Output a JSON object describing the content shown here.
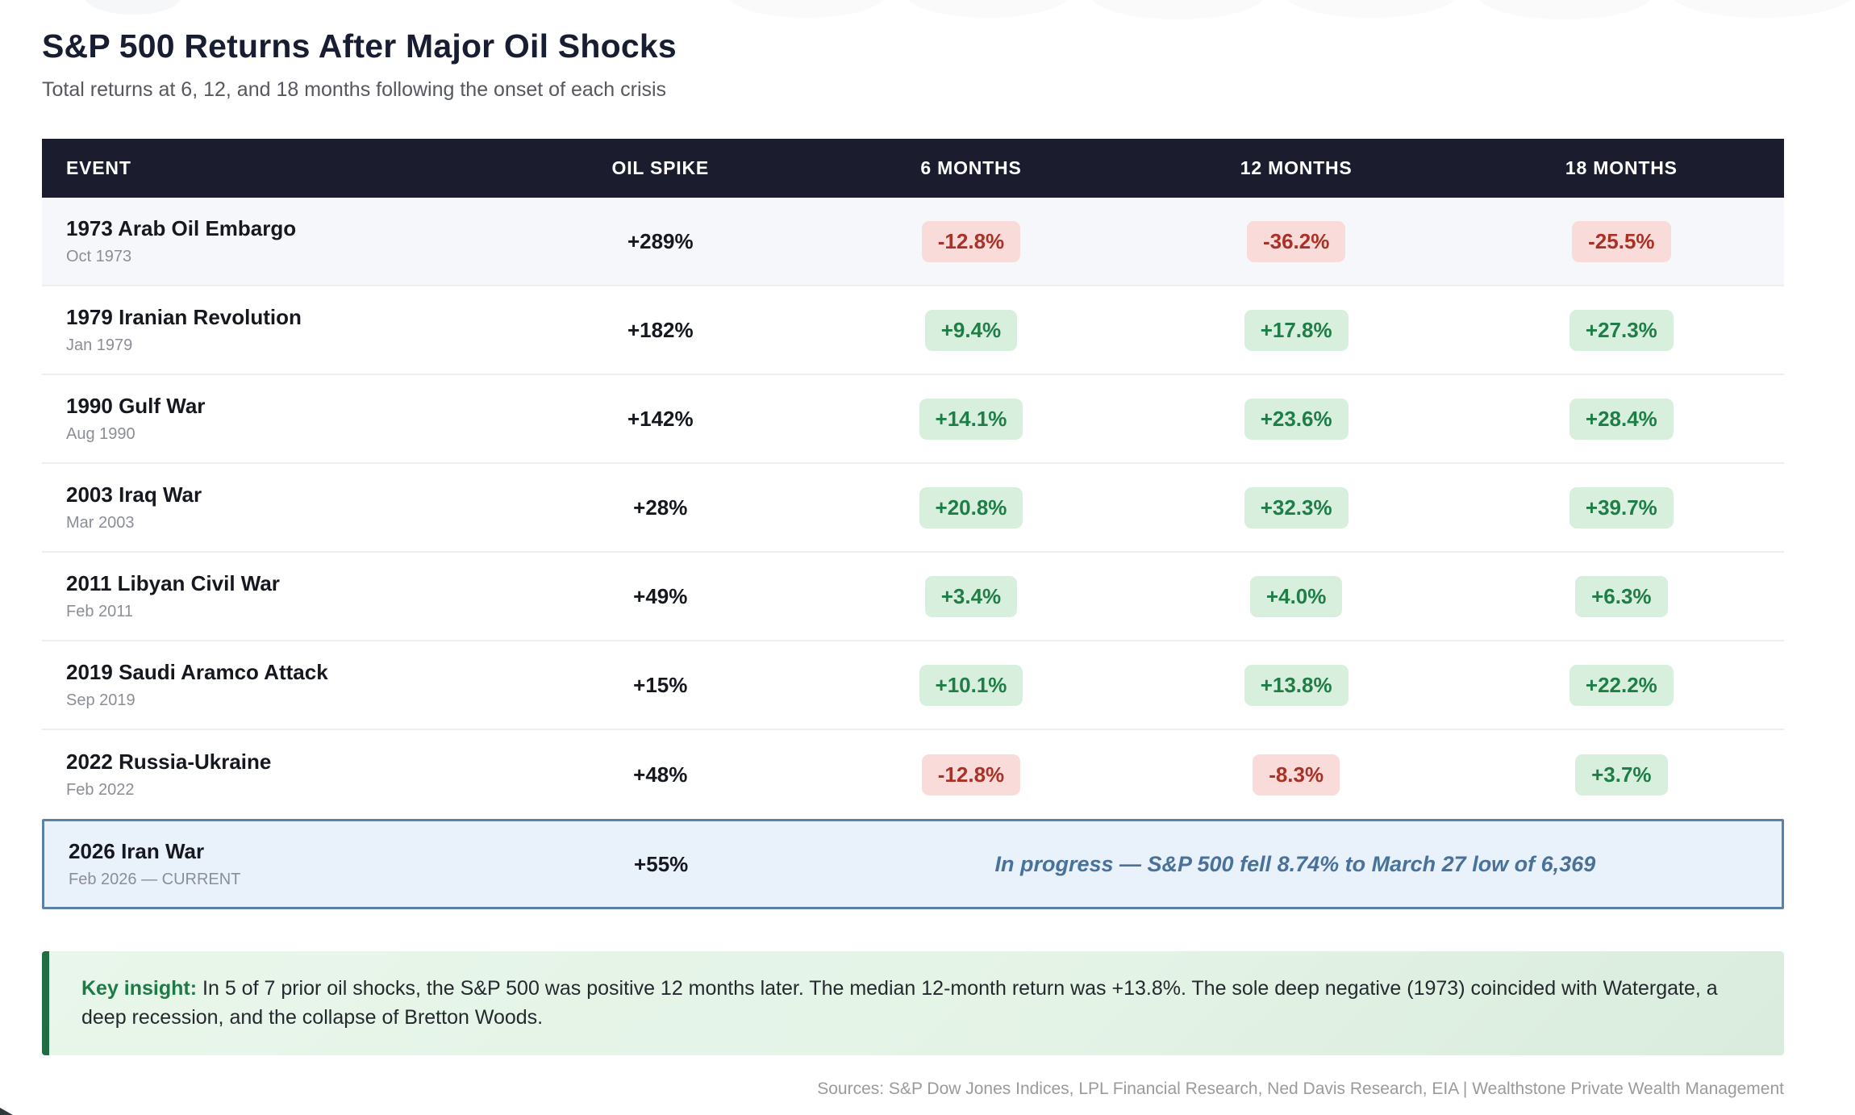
{
  "page": {
    "title": "S&P 500 Returns After Major Oil Shocks",
    "subtitle": "Total returns at 6, 12, and 18 months following the onset of each crisis",
    "sources": "Sources: S&P Dow Jones Indices, LPL Financial Research, Ned Davis Research, EIA | Wealthstone Private Wealth Management"
  },
  "colors": {
    "header_bg": "#1b1c2d",
    "positive_pill_bg": "#d8efde",
    "positive_pill_text": "#1f7e48",
    "negative_pill_bg": "#f9dbda",
    "negative_pill_text": "#aa3126",
    "current_row_bg": "#e9f1fa",
    "current_row_border": "#5b81a8",
    "current_note_text": "#49729b",
    "insight_bg": "#e7f4e9",
    "insight_accent": "#1f6f42",
    "shaded_row_bg": "#f6f7fa"
  },
  "table": {
    "columns": [
      "EVENT",
      "OIL SPIKE",
      "6 MONTHS",
      "12 MONTHS",
      "18 MONTHS"
    ],
    "rows": [
      {
        "event": "1973 Arab Oil Embargo",
        "date": "Oct 1973",
        "oil_spike": "+289%",
        "returns": [
          "-12.8%",
          "-36.2%",
          "-25.5%"
        ],
        "shaded": true
      },
      {
        "event": "1979 Iranian Revolution",
        "date": "Jan 1979",
        "oil_spike": "+182%",
        "returns": [
          "+9.4%",
          "+17.8%",
          "+27.3%"
        ]
      },
      {
        "event": "1990 Gulf War",
        "date": "Aug 1990",
        "oil_spike": "+142%",
        "returns": [
          "+14.1%",
          "+23.6%",
          "+28.4%"
        ]
      },
      {
        "event": "2003 Iraq War",
        "date": "Mar 2003",
        "oil_spike": "+28%",
        "returns": [
          "+20.8%",
          "+32.3%",
          "+39.7%"
        ]
      },
      {
        "event": "2011 Libyan Civil War",
        "date": "Feb 2011",
        "oil_spike": "+49%",
        "returns": [
          "+3.4%",
          "+4.0%",
          "+6.3%"
        ]
      },
      {
        "event": "2019 Saudi Aramco Attack",
        "date": "Sep 2019",
        "oil_spike": "+15%",
        "returns": [
          "+10.1%",
          "+13.8%",
          "+22.2%"
        ]
      },
      {
        "event": "2022 Russia-Ukraine",
        "date": "Feb 2022",
        "oil_spike": "+48%",
        "returns": [
          "-12.8%",
          "-8.3%",
          "+3.7%"
        ]
      },
      {
        "event": "2026 Iran War",
        "date": "Feb 2026 — CURRENT",
        "oil_spike": "+55%",
        "current": true,
        "note": "In progress — S&P 500 fell 8.74% to March 27 low of 6,369"
      }
    ]
  },
  "insight": {
    "label": "Key insight:",
    "text": " In 5 of 7 prior oil shocks, the S&P 500 was positive 12 months later. The median 12-month return was +13.8%. The sole deep negative (1973) coincided with Watergate, a deep recession, and the collapse of Bretton Woods."
  },
  "chart_data": {
    "type": "table",
    "title": "S&P 500 Returns After Major Oil Shocks",
    "subtitle": "Total returns at 6, 12, and 18 months following the onset of each crisis",
    "columns": [
      "EVENT",
      "OIL SPIKE",
      "6 MONTHS",
      "12 MONTHS",
      "18 MONTHS"
    ],
    "rows": [
      {
        "event": "1973 Arab Oil Embargo",
        "onset": "Oct 1973",
        "oil_spike_pct": 289,
        "returns_pct": {
          "6m": -12.8,
          "12m": -36.2,
          "18m": -25.5
        }
      },
      {
        "event": "1979 Iranian Revolution",
        "onset": "Jan 1979",
        "oil_spike_pct": 182,
        "returns_pct": {
          "6m": 9.4,
          "12m": 17.8,
          "18m": 27.3
        }
      },
      {
        "event": "1990 Gulf War",
        "onset": "Aug 1990",
        "oil_spike_pct": 142,
        "returns_pct": {
          "6m": 14.1,
          "12m": 23.6,
          "18m": 28.4
        }
      },
      {
        "event": "2003 Iraq War",
        "onset": "Mar 2003",
        "oil_spike_pct": 28,
        "returns_pct": {
          "6m": 20.8,
          "12m": 32.3,
          "18m": 39.7
        }
      },
      {
        "event": "2011 Libyan Civil War",
        "onset": "Feb 2011",
        "oil_spike_pct": 49,
        "returns_pct": {
          "6m": 3.4,
          "12m": 4.0,
          "18m": 6.3
        }
      },
      {
        "event": "2019 Saudi Aramco Attack",
        "onset": "Sep 2019",
        "oil_spike_pct": 15,
        "returns_pct": {
          "6m": 10.1,
          "12m": 13.8,
          "18m": 22.2
        }
      },
      {
        "event": "2022 Russia-Ukraine",
        "onset": "Feb 2022",
        "oil_spike_pct": 48,
        "returns_pct": {
          "6m": -12.8,
          "12m": -8.3,
          "18m": 3.7
        }
      },
      {
        "event": "2026 Iran War",
        "onset": "Feb 2026 (CURRENT)",
        "oil_spike_pct": 55,
        "status_note": "In progress — S&P 500 fell 8.74% to March 27 low of 6,369"
      }
    ],
    "annotations": [
      "Key insight: In 5 of 7 prior oil shocks, the S&P 500 was positive 12 months later. The median 12-month return was +13.8%. The sole deep negative (1973) coincided with Watergate, a deep recession, and the collapse of Bretton Woods."
    ],
    "sources": "S&P Dow Jones Indices, LPL Financial Research, Ned Davis Research, EIA | Wealthstone Private Wealth Management"
  }
}
